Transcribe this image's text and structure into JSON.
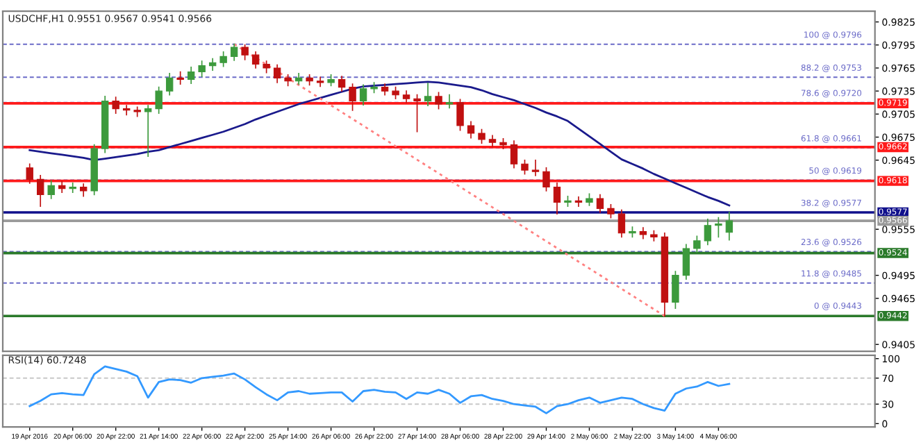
{
  "chart_data": [
    {
      "type": "candlestick",
      "title": "USDCHF,H1 0.9551 0.9567 0.9541 0.9566",
      "tick_labels": "y",
      "categories": [
        null,
        null,
        null,
        null,
        null,
        null,
        null,
        null,
        null,
        null,
        null,
        null,
        null,
        null,
        null,
        null,
        null,
        null,
        null,
        null,
        null,
        null,
        null,
        null,
        null,
        null,
        null,
        null,
        null,
        null,
        null,
        null,
        null,
        null,
        null,
        null,
        null,
        null,
        null,
        null,
        null,
        null,
        null,
        null,
        null,
        null,
        null,
        null,
        null,
        null,
        null,
        null,
        null,
        null,
        null,
        null,
        null,
        null,
        null,
        null,
        null,
        null,
        null,
        null,
        null,
        null
      ],
      "annotations": [
        {
          "text": "38.2 @ 0.9577",
          "y": 0.9577
        },
        {
          "text": "0 @ 0.9443",
          "y": 0.9443
        }
      ],
      "colors": [
        "#c01010",
        "#c01010",
        "#3c9a3c",
        "#c01010",
        "#3c9a3c",
        "#c01010",
        "#3c9a3c",
        "#3c9a3c",
        "#c01010",
        "#c01010",
        "#c01010",
        "#3c9a3c",
        "#3c9a3c",
        "#3c9a3c",
        "#c01010",
        "#3c9a3c",
        "#3c9a3c",
        "#3c9a3c",
        "#3c9a3c",
        "#3c9a3c",
        "#c01010",
        "#c01010",
        "#c01010",
        "#c01010",
        "#c01010",
        "#3c9a3c",
        "#c01010",
        "#c01010",
        "#3c9a3c",
        "#c01010",
        "#c01010",
        "#3c9a3c",
        "#3c9a3c",
        "#c01010",
        "#c01010",
        "#c01010",
        "#c01010",
        "#3c9a3c",
        "#c01010",
        "#3c9a3c",
        "#c01010",
        "#c01010",
        "#c01010",
        "#c01010",
        "#c01010",
        "#c01010",
        "#c01010",
        "#c01010",
        "#c01010",
        "#c01010",
        "#3c9a3c",
        "#c01010",
        "#3c9a3c",
        "#c01010",
        "#c01010",
        "#c01010",
        "#3c9a3c",
        "#c01010",
        "#c01010",
        "#c01010",
        "#3c9a3c",
        "#3c9a3c",
        "#3c9a3c",
        "#3c9a3c",
        "#3c9a3c",
        "#3c9a3c"
      ],
      "ohlc": [
        [
          0.9635,
          0.964,
          0.9615,
          0.962
        ],
        [
          0.962,
          0.9625,
          0.9585,
          0.96
        ],
        [
          0.96,
          0.9618,
          0.9595,
          0.9612
        ],
        [
          0.9612,
          0.9617,
          0.9603,
          0.9608
        ],
        [
          0.9608,
          0.9615,
          0.9603,
          0.961
        ],
        [
          0.961,
          0.9614,
          0.9598,
          0.9605
        ],
        [
          0.9605,
          0.9665,
          0.96,
          0.966
        ],
        [
          0.966,
          0.9728,
          0.9655,
          0.9722
        ],
        [
          0.9722,
          0.9727,
          0.9706,
          0.9712
        ],
        [
          0.9712,
          0.9716,
          0.9704,
          0.971
        ],
        [
          0.971,
          0.9714,
          0.9702,
          0.9708
        ],
        [
          0.9708,
          0.9716,
          0.965,
          0.9712
        ],
        [
          0.9712,
          0.974,
          0.9706,
          0.9735
        ],
        [
          0.9735,
          0.9758,
          0.973,
          0.9752
        ],
        [
          0.9752,
          0.976,
          0.9744,
          0.975
        ],
        [
          0.975,
          0.9766,
          0.9745,
          0.976
        ],
        [
          0.976,
          0.9774,
          0.9754,
          0.9768
        ],
        [
          0.9768,
          0.9777,
          0.9762,
          0.9772
        ],
        [
          0.9772,
          0.9786,
          0.9767,
          0.978
        ],
        [
          0.978,
          0.9796,
          0.9775,
          0.9792
        ],
        [
          0.9792,
          0.9795,
          0.9776,
          0.9782
        ],
        [
          0.9782,
          0.9786,
          0.9765,
          0.977
        ],
        [
          0.977,
          0.9774,
          0.9759,
          0.9765
        ],
        [
          0.9765,
          0.9769,
          0.9746,
          0.9752
        ],
        [
          0.9752,
          0.9756,
          0.9742,
          0.9748
        ],
        [
          0.9748,
          0.9758,
          0.9744,
          0.9752
        ],
        [
          0.9752,
          0.9756,
          0.9743,
          0.9748
        ],
        [
          0.9748,
          0.9753,
          0.9741,
          0.9746
        ],
        [
          0.9746,
          0.9756,
          0.9742,
          0.975
        ],
        [
          0.975,
          0.9754,
          0.9735,
          0.974
        ],
        [
          0.974,
          0.9744,
          0.971,
          0.9722
        ],
        [
          0.9722,
          0.9743,
          0.9717,
          0.9738
        ],
        [
          0.9738,
          0.9746,
          0.9733,
          0.974
        ],
        [
          0.974,
          0.9744,
          0.973,
          0.9735
        ],
        [
          0.9735,
          0.974,
          0.9725,
          0.973
        ],
        [
          0.973,
          0.9735,
          0.972,
          0.9725
        ],
        [
          0.9725,
          0.973,
          0.9682,
          0.9722
        ],
        [
          0.9722,
          0.9745,
          0.9716,
          0.9728
        ],
        [
          0.9728,
          0.9733,
          0.9712,
          0.9718
        ],
        [
          0.9718,
          0.973,
          0.9713,
          0.972
        ],
        [
          0.972,
          0.9724,
          0.9684,
          0.969
        ],
        [
          0.969,
          0.9695,
          0.9674,
          0.968
        ],
        [
          0.968,
          0.9685,
          0.9667,
          0.9672
        ],
        [
          0.9672,
          0.9677,
          0.9663,
          0.9668
        ],
        [
          0.9668,
          0.9673,
          0.966,
          0.9665
        ],
        [
          0.9665,
          0.967,
          0.9635,
          0.964
        ],
        [
          0.964,
          0.9645,
          0.9627,
          0.9632
        ],
        [
          0.9632,
          0.9645,
          0.9625,
          0.963
        ],
        [
          0.963,
          0.9635,
          0.9605,
          0.961
        ],
        [
          0.961,
          0.9615,
          0.9575,
          0.959
        ],
        [
          0.959,
          0.9598,
          0.9585,
          0.9592
        ],
        [
          0.9592,
          0.9597,
          0.9585,
          0.959
        ],
        [
          0.959,
          0.9601,
          0.9586,
          0.9595
        ],
        [
          0.9595,
          0.96,
          0.9577,
          0.9582
        ],
        [
          0.9582,
          0.9587,
          0.957,
          0.9575
        ],
        [
          0.9575,
          0.958,
          0.9545,
          0.955
        ],
        [
          0.955,
          0.9558,
          0.9545,
          0.9552
        ],
        [
          0.9552,
          0.9557,
          0.9543,
          0.9548
        ],
        [
          0.9548,
          0.9553,
          0.954,
          0.9545
        ],
        [
          0.9545,
          0.955,
          0.9442,
          0.946
        ],
        [
          0.946,
          0.95,
          0.9452,
          0.9495
        ],
        [
          0.9495,
          0.9535,
          0.949,
          0.953
        ],
        [
          0.953,
          0.9546,
          0.9525,
          0.954
        ],
        [
          0.954,
          0.9568,
          0.9535,
          0.956
        ],
        [
          0.956,
          0.957,
          0.9545,
          0.9562
        ],
        [
          0.9551,
          0.9577,
          0.9541,
          0.9566
        ]
      ],
      "series": [
        {
          "type": "line",
          "color": "#1a1a8c",
          "line_style": "solid",
          "values": [
            0.9658,
            0.9656,
            0.9654,
            0.9652,
            0.965,
            0.9648,
            0.9645,
            0.9647,
            0.9649,
            0.9651,
            0.9653,
            0.9656,
            0.9658,
            0.9662,
            0.9666,
            0.967,
            0.9674,
            0.9678,
            0.9682,
            0.9687,
            0.9692,
            0.9698,
            0.9703,
            0.9708,
            0.9713,
            0.9718,
            0.9722,
            0.9726,
            0.973,
            0.9734,
            0.9738,
            0.9741,
            0.9742,
            0.9743,
            0.9744,
            0.9745,
            0.9746,
            0.9747,
            0.9746,
            0.9744,
            0.9742,
            0.974,
            0.9736,
            0.9731,
            0.9727,
            0.9723,
            0.9718,
            0.9713,
            0.9707,
            0.9702,
            0.9696,
            0.9686,
            0.9676,
            0.9666,
            0.9656,
            0.9646,
            0.964,
            0.9634,
            0.9627,
            0.9621,
            0.9615,
            0.9609,
            0.9603,
            0.9597,
            0.9592,
            0.9586
          ]
        },
        {
          "type": "line",
          "color": "#ff8080",
          "line_style": "dotted",
          "values": [
            null,
            null,
            null,
            null,
            null,
            null,
            null,
            null,
            null,
            null,
            null,
            null,
            null,
            null,
            null,
            null,
            null,
            null,
            null,
            0.9796,
            null,
            null,
            null,
            null,
            null,
            null,
            null,
            null,
            null,
            null,
            null,
            null,
            null,
            null,
            null,
            null,
            null,
            null,
            null,
            null,
            null,
            null,
            null,
            null,
            null,
            null,
            null,
            null,
            null,
            null,
            null,
            null,
            null,
            null,
            null,
            null,
            null,
            null,
            null,
            0.9442,
            null,
            null,
            null,
            null,
            null,
            null
          ]
        }
      ],
      "ylim": [
        0.9396,
        0.9839
      ],
      "yticks": [
        0.9405,
        0.9465,
        0.9495,
        0.9555,
        0.9645,
        0.9675,
        0.9705,
        0.9735,
        0.9765,
        0.9795,
        0.9825
      ],
      "ref_lines": [
        {
          "axis": "y",
          "value": 0.9796,
          "label": "100 @ 0.9796",
          "color": "#6b6bc8",
          "line_style": "dashed"
        },
        {
          "axis": "y",
          "value": 0.9753,
          "label": "88.2 @ 0.9753",
          "color": "#6b6bc8",
          "line_style": "dashed"
        },
        {
          "axis": "y",
          "value": 0.972,
          "label": "78.6 @ 0.9720",
          "color": "#6b6bc8",
          "line_style": "dashed"
        },
        {
          "axis": "y",
          "value": 0.9661,
          "label": "61.8 @ 0.9661",
          "color": "#6b6bc8",
          "line_style": "dashed"
        },
        {
          "axis": "y",
          "value": 0.9619,
          "label": "50 @ 0.9619",
          "color": "#6b6bc8",
          "line_style": "dashed"
        },
        {
          "axis": "y",
          "value": 0.9526,
          "label": "23.6 @ 0.9526",
          "color": "#6b6bc8",
          "line_style": "dashed"
        },
        {
          "axis": "y",
          "value": 0.9485,
          "label": "11.8 @ 0.9485",
          "color": "#6b6bc8",
          "line_style": "dashed"
        },
        {
          "axis": "y",
          "value": 0.9719,
          "label": "0.9719",
          "color": "#ff1a1a",
          "line_style": "solid"
        },
        {
          "axis": "y",
          "value": 0.9662,
          "label": "0.9662",
          "color": "#ff1a1a",
          "line_style": "solid"
        },
        {
          "axis": "y",
          "value": 0.9618,
          "label": "0.9618",
          "color": "#ff1a1a",
          "line_style": "solid"
        },
        {
          "axis": "y",
          "value": 0.9577,
          "label": "0.9577",
          "color": "#10108c",
          "line_style": "solid"
        },
        {
          "axis": "y",
          "value": 0.9566,
          "label": "0.9566",
          "color": "#9a9a9a",
          "line_style": "solid"
        },
        {
          "axis": "y",
          "value": 0.9524,
          "label": "0.9524",
          "color": "#2a7a2a",
          "line_style": "solid"
        },
        {
          "axis": "y",
          "value": 0.9442,
          "label": "0.9442",
          "color": "#2a7a2a",
          "line_style": "solid"
        }
      ]
    },
    {
      "type": "line",
      "title": "RSI(14) 60.7248",
      "categories": [
        "19 Apr 2016",
        null,
        null,
        null,
        "20 Apr 06:00",
        null,
        null,
        null,
        "20 Apr 22:00",
        null,
        null,
        null,
        "21 Apr 14:00",
        null,
        null,
        null,
        "22 Apr 06:00",
        null,
        null,
        null,
        "22 Apr 22:00",
        null,
        null,
        null,
        "25 Apr 14:00",
        null,
        null,
        null,
        "26 Apr 06:00",
        null,
        null,
        null,
        "26 Apr 22:00",
        null,
        null,
        null,
        "27 Apr 14:00",
        null,
        null,
        null,
        "28 Apr 06:00",
        null,
        null,
        null,
        "28 Apr 22:00",
        null,
        null,
        null,
        "29 Apr 14:00",
        null,
        null,
        null,
        "2 May 06:00",
        null,
        null,
        null,
        "2 May 22:00",
        null,
        null,
        null,
        "3 May 14:00",
        null,
        null,
        null,
        "4 May 06:00",
        null
      ],
      "series": [
        {
          "color": "#3399ff",
          "line_style": "solid",
          "values": [
            27,
            35,
            45,
            47,
            45,
            44,
            76,
            88,
            84,
            80,
            73,
            40,
            64,
            68,
            67,
            63,
            70,
            72,
            74,
            77,
            68,
            56,
            45,
            36,
            48,
            50,
            46,
            47,
            48,
            48,
            34,
            50,
            52,
            49,
            48,
            38,
            48,
            46,
            52,
            46,
            32,
            42,
            44,
            38,
            35,
            30,
            28,
            26,
            16,
            27,
            30,
            36,
            40,
            32,
            36,
            40,
            38,
            30,
            24,
            20,
            46,
            54,
            57,
            64,
            58,
            61
          ]
        }
      ],
      "ylim": [
        -5,
        105
      ],
      "yticks": [
        0,
        30,
        70,
        100
      ],
      "ref_lines": [
        {
          "axis": "y",
          "value": 70,
          "color": "#c8c8c8",
          "line_style": "dashed"
        },
        {
          "axis": "y",
          "value": 30,
          "color": "#c8c8c8",
          "line_style": "dashed"
        }
      ]
    }
  ]
}
